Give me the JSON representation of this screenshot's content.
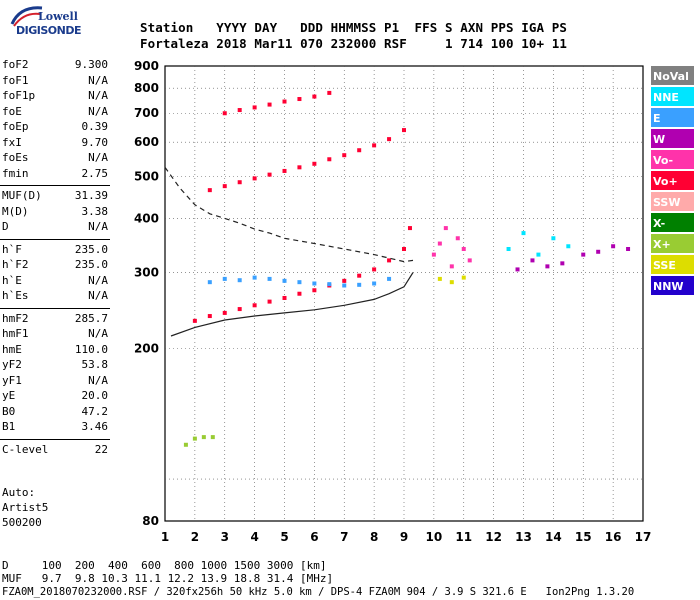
{
  "header": {
    "logo_top": "Lowell",
    "logo_bottom": "DIGISONDE",
    "labels_line": "Station   YYYY DAY   DDD HHMMSS P1  FFS S AXN PPS IGA PS",
    "values_line": "Fortaleza 2018 Mar11 070 232000 RSF     1 714 100 10+ 11"
  },
  "parameters": [
    {
      "label": "foF2",
      "value": "9.300"
    },
    {
      "label": "foF1",
      "value": "N/A"
    },
    {
      "label": "foF1p",
      "value": "N/A"
    },
    {
      "label": "foE",
      "value": "N/A"
    },
    {
      "label": "foEp",
      "value": "0.39"
    },
    {
      "label": "fxI",
      "value": "9.70"
    },
    {
      "label": "foEs",
      "value": "N/A"
    },
    {
      "label": "fmin",
      "value": "2.75"
    },
    {
      "label": "MUF(D)",
      "value": "31.39"
    },
    {
      "label": "M(D)",
      "value": "3.38"
    },
    {
      "label": "D",
      "value": "N/A"
    },
    {
      "label": "h`F",
      "value": "235.0"
    },
    {
      "label": "h`F2",
      "value": "235.0"
    },
    {
      "label": "h`E",
      "value": "N/A"
    },
    {
      "label": "h`Es",
      "value": "N/A"
    },
    {
      "label": "hmF2",
      "value": "285.7"
    },
    {
      "label": "hmF1",
      "value": "N/A"
    },
    {
      "label": "hmE",
      "value": "110.0"
    },
    {
      "label": "yF2",
      "value": "53.8"
    },
    {
      "label": "yF1",
      "value": "N/A"
    },
    {
      "label": "yE",
      "value": "20.0"
    },
    {
      "label": "B0",
      "value": "47.2"
    },
    {
      "label": "B1",
      "value": "3.46"
    },
    {
      "label": "C-level",
      "value": "22"
    }
  ],
  "auto": {
    "line1": "Auto:",
    "line2": "Artist5",
    "line3": "500200"
  },
  "footer": {
    "d_line": "D     100  200  400  600  800 1000 1500 3000 [km]",
    "muf_line": "MUF   9.7  9.8 10.3 11.1 12.2 13.9 18.8 31.4 [MHz]",
    "file_line": "FZA0M_2018070232000.RSF / 320fx256h 50 kHz 5.0 km / DPS-4 FZA0M 904 / 3.9 S 321.6 E   Ion2Png 1.3.20"
  },
  "legend": [
    {
      "label": "NoVal",
      "color": "#808080"
    },
    {
      "label": "NNE",
      "color": "#00e5ff"
    },
    {
      "label": "E",
      "color": "#3aa0ff"
    },
    {
      "label": "W",
      "color": "#b000b0"
    },
    {
      "label": "Vo-",
      "color": "#ff33aa"
    },
    {
      "label": "Vo+",
      "color": "#ff0033"
    },
    {
      "label": "SSW",
      "color": "#ffaaaa"
    },
    {
      "label": "X-",
      "color": "#008000"
    },
    {
      "label": "X+",
      "color": "#99cc33"
    },
    {
      "label": "SSE",
      "color": "#dddd00"
    },
    {
      "label": "NNW",
      "color": "#2200cc"
    }
  ],
  "chart_data": {
    "type": "scatter",
    "xlim": [
      1,
      17
    ],
    "ylim": [
      80,
      900
    ],
    "x_ticks": [
      1,
      2,
      3,
      4,
      5,
      6,
      7,
      8,
      9,
      10,
      11,
      12,
      13,
      14,
      15,
      16,
      17
    ],
    "y_ticks": [
      80,
      200,
      300,
      400,
      500,
      600,
      700,
      800,
      900
    ],
    "y_scale": "log",
    "grid": true,
    "legend_position": "right",
    "series": [
      {
        "name": "Vo+",
        "color": "#ff0033",
        "x": [
          2.0,
          2.5,
          3.0,
          3.5,
          4.0,
          4.5,
          5.0,
          5.5,
          6.0,
          6.5,
          7.0,
          7.5,
          8.0,
          8.5,
          9.0,
          9.2
        ],
        "y": [
          232,
          238,
          242,
          247,
          252,
          257,
          262,
          268,
          273,
          280,
          287,
          295,
          305,
          320,
          340,
          380
        ]
      },
      {
        "name": "E",
        "color": "#3aa0ff",
        "x": [
          2.5,
          3.0,
          3.5,
          4.0,
          4.5,
          5.0,
          5.5,
          6.0,
          6.5,
          7.0,
          7.5,
          8.0,
          8.5
        ],
        "y": [
          285,
          290,
          288,
          292,
          290,
          287,
          285,
          283,
          282,
          280,
          281,
          283,
          290
        ]
      },
      {
        "name": "Vo+",
        "color": "#ff0033",
        "x": [
          2.5,
          3.0,
          3.5,
          4.0,
          4.5,
          5.0,
          5.5,
          6.0,
          6.5,
          7.0,
          7.5,
          8.0,
          8.5,
          9.0
        ],
        "y": [
          465,
          475,
          485,
          495,
          505,
          515,
          525,
          535,
          548,
          560,
          575,
          590,
          610,
          640
        ]
      },
      {
        "name": "Vo+",
        "color": "#ff0033",
        "x": [
          3.0,
          3.5,
          4.0,
          4.5,
          5.0,
          5.5,
          6.0,
          6.5
        ],
        "y": [
          700,
          712,
          722,
          733,
          745,
          755,
          765,
          780
        ]
      },
      {
        "name": "Vo-",
        "color": "#ff33aa",
        "x": [
          10.0,
          10.2,
          10.4,
          10.6,
          10.8,
          11.0,
          11.2
        ],
        "y": [
          330,
          350,
          380,
          310,
          360,
          340,
          320
        ]
      },
      {
        "name": "NNE",
        "color": "#00e5ff",
        "x": [
          12.5,
          13.0,
          13.5,
          14.0,
          14.5
        ],
        "y": [
          340,
          370,
          330,
          360,
          345
        ]
      },
      {
        "name": "W",
        "color": "#b000b0",
        "x": [
          12.8,
          13.3,
          13.8,
          14.3,
          15.0,
          15.5,
          16.0,
          16.5
        ],
        "y": [
          305,
          320,
          310,
          315,
          330,
          335,
          345,
          340
        ]
      },
      {
        "name": "SSE",
        "color": "#dddd00",
        "x": [
          10.2,
          10.6,
          11.0
        ],
        "y": [
          290,
          285,
          292
        ]
      },
      {
        "name": "X+",
        "color": "#99cc33",
        "x": [
          1.7,
          2.0,
          2.3,
          2.6
        ],
        "y": [
          120,
          124,
          125,
          125
        ]
      }
    ],
    "lines": [
      {
        "style": "dashed",
        "x": [
          1.0,
          1.5,
          2.0,
          2.5,
          3.0,
          3.5,
          4.0,
          4.5,
          5.0,
          6.0,
          7.0,
          8.0,
          9.0,
          9.3
        ],
        "y": [
          525,
          470,
          430,
          410,
          400,
          390,
          378,
          370,
          360,
          350,
          340,
          330,
          318,
          320
        ]
      },
      {
        "style": "solid",
        "x": [
          1.2,
          2.0,
          3.0,
          4.0,
          5.0,
          6.0,
          7.0,
          8.0,
          8.5,
          9.0,
          9.3
        ],
        "y": [
          214,
          224,
          233,
          238,
          242,
          246,
          252,
          260,
          268,
          278,
          300
        ]
      }
    ]
  }
}
